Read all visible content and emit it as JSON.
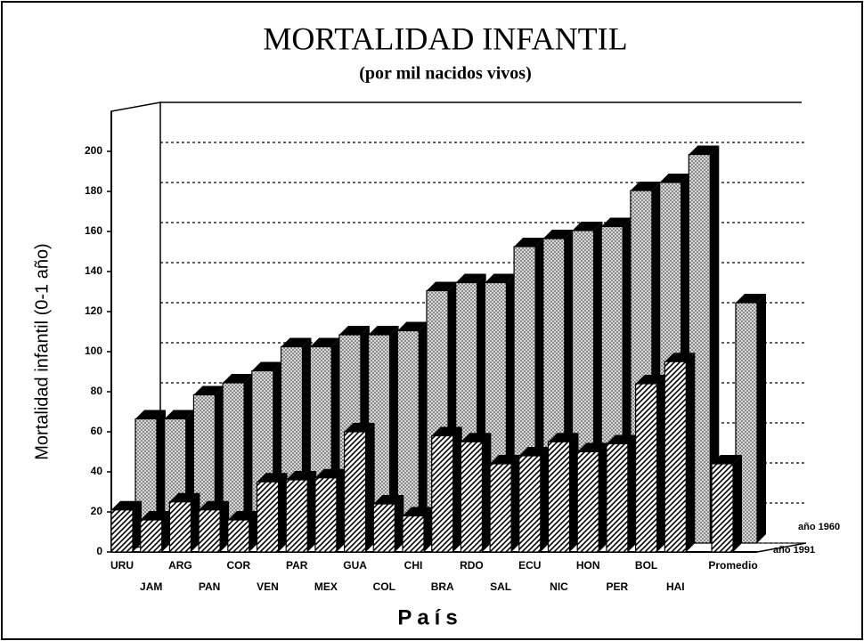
{
  "chart_data": {
    "type": "bar3d",
    "title": "MORTALIDAD INFANTIL",
    "subtitle": "(por mil nacidos vivos)",
    "y_label": "Mortalidad infantil (0-1 año)",
    "x_label": "País",
    "categories": [
      "URU",
      "JAM",
      "ARG",
      "PAN",
      "COR",
      "VEN",
      "PAR",
      "MEX",
      "GUA",
      "COL",
      "CHI",
      "BRA",
      "RDO",
      "SAL",
      "ECU",
      "NIC",
      "HON",
      "PER",
      "BOL",
      "HAI",
      "Promedio"
    ],
    "series": [
      {
        "name": "año 1960",
        "color": "#bdbdbd",
        "values": [
          62,
          62,
          74,
          80,
          86,
          98,
          98,
          104,
          104,
          106,
          126,
          130,
          130,
          148,
          152,
          156,
          158,
          176,
          180,
          194,
          120
        ]
      },
      {
        "name": "año 1991",
        "color": "#ffffff",
        "values": [
          21,
          16,
          25,
          21,
          16,
          35,
          36,
          37,
          60,
          24,
          18,
          58,
          55,
          44,
          48,
          55,
          50,
          54,
          84,
          95,
          44
        ]
      }
    ],
    "ylim": [
      0,
      200
    ],
    "yticks": [
      0,
      20,
      40,
      60,
      80,
      100,
      120,
      140,
      160,
      180,
      200
    ],
    "grid": true
  }
}
